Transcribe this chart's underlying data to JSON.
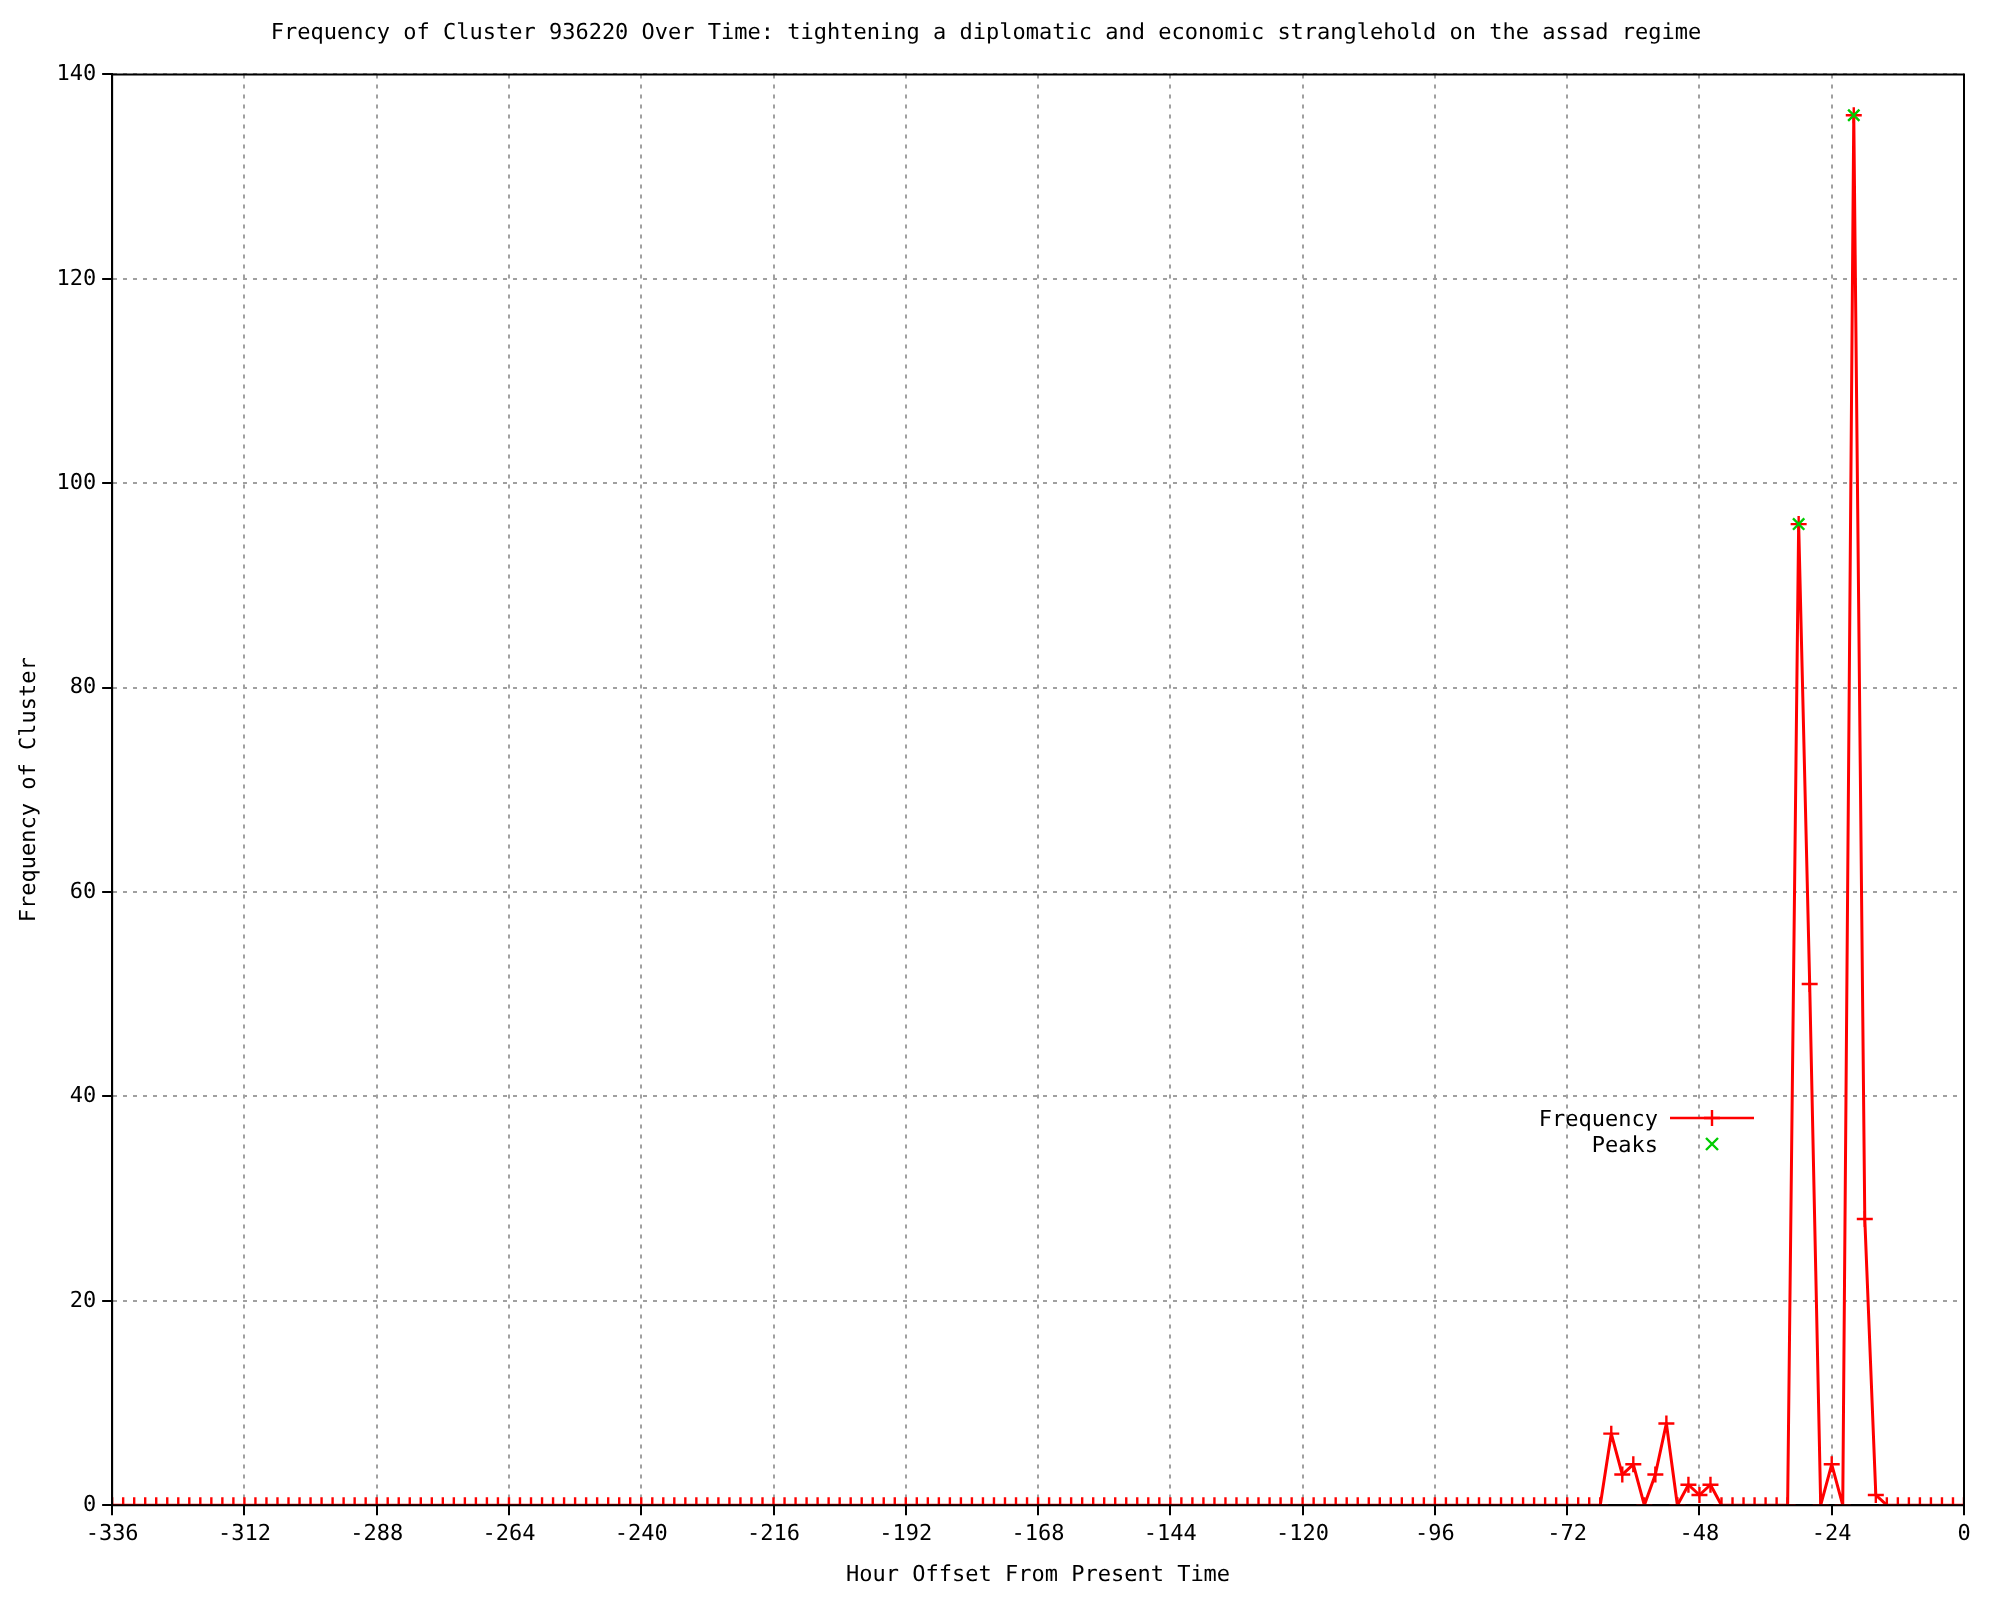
{
  "chart_data": {
    "type": "line",
    "title": "Frequency of Cluster 936220 Over Time: tightening a diplomatic and economic stranglehold on the assad regime",
    "xlabel": "Hour Offset From Present Time",
    "ylabel": "Frequency of Cluster",
    "xlim": [
      -336,
      0
    ],
    "xticks": [
      -336,
      -312,
      -288,
      -264,
      -240,
      -216,
      -192,
      -168,
      -144,
      -120,
      -96,
      -72,
      -48,
      -24,
      0
    ],
    "ylim": [
      0,
      140
    ],
    "yticks": [
      0,
      20,
      40,
      60,
      80,
      100,
      120,
      140
    ],
    "grid": true,
    "legend": "bottom right",
    "line_style": "solid",
    "series": [
      {
        "name": "Frequency",
        "color": "#ff0000",
        "marker": "cross",
        "x": [
          -336,
          -334,
          -332,
          -330,
          -328,
          -326,
          -324,
          -322,
          -320,
          -318,
          -316,
          -314,
          -312,
          -310,
          -308,
          -306,
          -304,
          -302,
          -300,
          -298,
          -296,
          -294,
          -292,
          -290,
          -288,
          -286,
          -284,
          -282,
          -280,
          -278,
          -276,
          -274,
          -272,
          -270,
          -268,
          -266,
          -264,
          -262,
          -260,
          -258,
          -256,
          -254,
          -252,
          -250,
          -248,
          -246,
          -244,
          -242,
          -240,
          -238,
          -236,
          -234,
          -232,
          -230,
          -228,
          -226,
          -224,
          -222,
          -220,
          -218,
          -216,
          -214,
          -212,
          -210,
          -208,
          -206,
          -204,
          -202,
          -200,
          -198,
          -196,
          -194,
          -192,
          -190,
          -188,
          -186,
          -184,
          -182,
          -180,
          -178,
          -176,
          -174,
          -172,
          -170,
          -168,
          -166,
          -164,
          -162,
          -160,
          -158,
          -156,
          -154,
          -152,
          -150,
          -148,
          -146,
          -144,
          -142,
          -140,
          -138,
          -136,
          -134,
          -132,
          -130,
          -128,
          -126,
          -124,
          -122,
          -120,
          -118,
          -116,
          -114,
          -112,
          -110,
          -108,
          -106,
          -104,
          -102,
          -100,
          -98,
          -96,
          -94,
          -92,
          -90,
          -88,
          -86,
          -84,
          -82,
          -80,
          -78,
          -76,
          -74,
          -72,
          -70,
          -68,
          -66,
          -64,
          -62,
          -60,
          -58,
          -56,
          -54,
          -52,
          -50,
          -48,
          -46,
          -44,
          -42,
          -40,
          -38,
          -36,
          -34,
          -32,
          -30,
          -28,
          -26,
          -24,
          -22,
          -20,
          -18,
          -16,
          -14,
          -12,
          -10,
          -8,
          -6,
          -4,
          -2,
          0
        ],
        "values": [
          0,
          0,
          0,
          0,
          0,
          0,
          0,
          0,
          0,
          0,
          0,
          0,
          0,
          0,
          0,
          0,
          0,
          0,
          0,
          0,
          0,
          0,
          0,
          0,
          0,
          0,
          0,
          0,
          0,
          0,
          0,
          0,
          0,
          0,
          0,
          0,
          0,
          0,
          0,
          0,
          0,
          0,
          0,
          0,
          0,
          0,
          0,
          0,
          0,
          0,
          0,
          0,
          0,
          0,
          0,
          0,
          0,
          0,
          0,
          0,
          0,
          0,
          0,
          0,
          0,
          0,
          0,
          0,
          0,
          0,
          0,
          0,
          0,
          0,
          0,
          0,
          0,
          0,
          0,
          0,
          0,
          0,
          0,
          0,
          0,
          0,
          0,
          0,
          0,
          0,
          0,
          0,
          0,
          0,
          0,
          0,
          0,
          0,
          0,
          0,
          0,
          0,
          0,
          0,
          0,
          0,
          0,
          0,
          0,
          0,
          0,
          0,
          0,
          0,
          0,
          0,
          0,
          0,
          0,
          0,
          0,
          0,
          0,
          0,
          0,
          0,
          0,
          0,
          0,
          0,
          0,
          0,
          0,
          0,
          0,
          0,
          7,
          3,
          4,
          0,
          3,
          8,
          0,
          2,
          1,
          2,
          0,
          0,
          0,
          0,
          0,
          0,
          0,
          96,
          51,
          0,
          4,
          0,
          136,
          28,
          1,
          0,
          0,
          0,
          0,
          0,
          0,
          0,
          0
        ]
      },
      {
        "name": "Peaks",
        "type": "scatter",
        "color": "#00cc00",
        "marker": "cross",
        "x": [
          -30,
          -20
        ],
        "values": [
          96,
          136
        ]
      }
    ]
  }
}
